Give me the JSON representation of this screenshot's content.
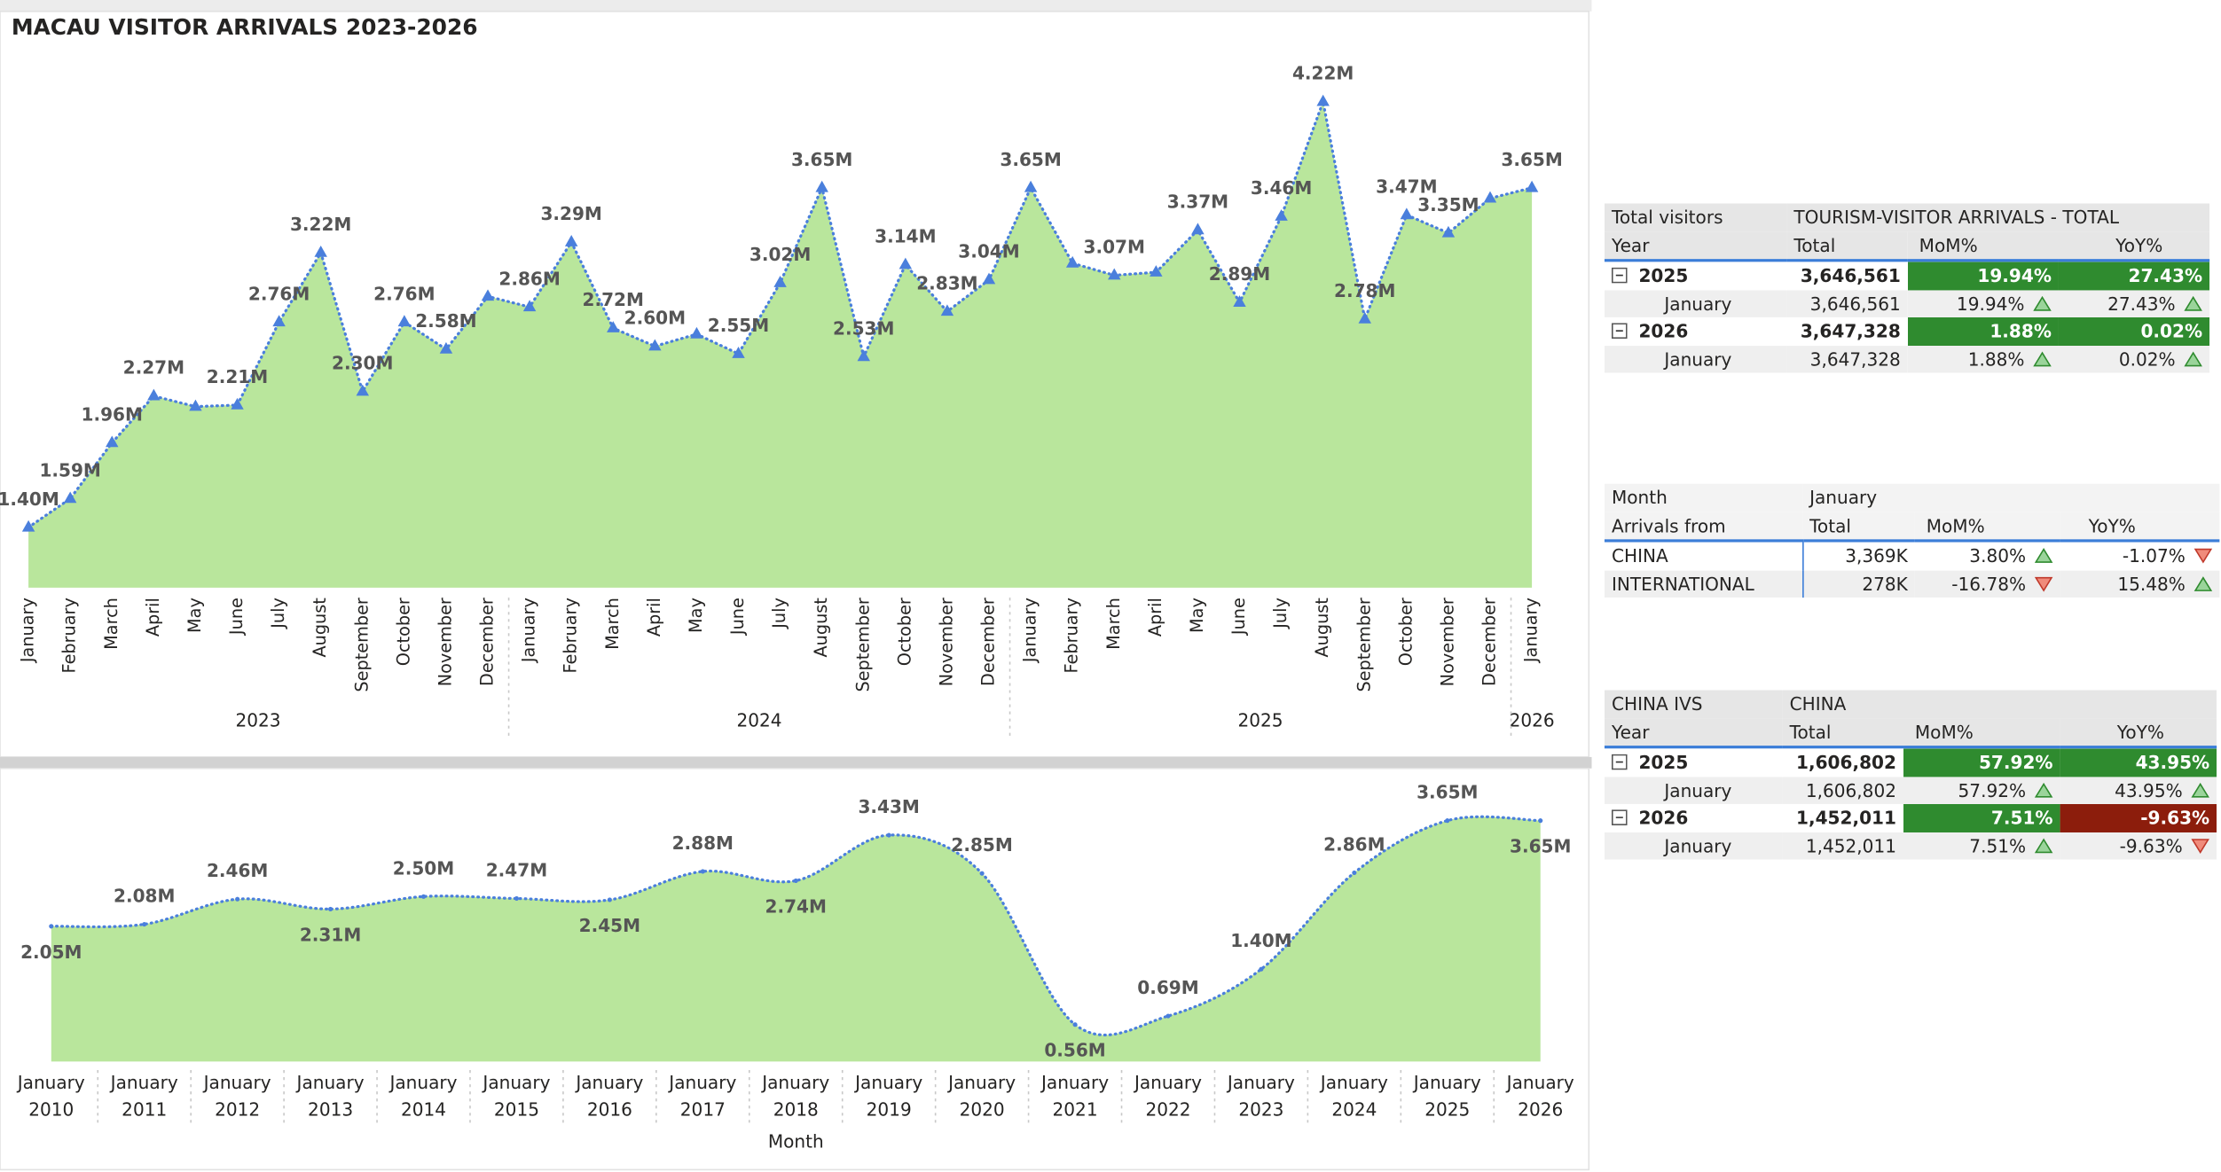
{
  "chart_data": [
    {
      "type": "area",
      "title": "MACAU VISITOR ARRIVALS 2023-2026",
      "categories": [
        "January",
        "February",
        "March",
        "April",
        "May",
        "June",
        "July",
        "August",
        "September",
        "October",
        "November",
        "December",
        "January",
        "February",
        "March",
        "April",
        "May",
        "June",
        "July",
        "August",
        "September",
        "October",
        "November",
        "December",
        "January",
        "February",
        "March",
        "April",
        "May",
        "June",
        "July",
        "August",
        "September",
        "October",
        "November",
        "December",
        "January"
      ],
      "x_groups": [
        "2023",
        "2024",
        "2025",
        "2026"
      ],
      "values": [
        1.4,
        1.59,
        1.96,
        2.27,
        2.2,
        2.21,
        2.76,
        3.22,
        2.3,
        2.76,
        2.58,
        2.93,
        2.86,
        3.29,
        2.72,
        2.6,
        2.68,
        2.55,
        3.02,
        3.65,
        2.53,
        3.14,
        2.83,
        3.04,
        3.65,
        3.15,
        3.07,
        3.09,
        3.37,
        2.89,
        3.46,
        4.22,
        2.78,
        3.47,
        3.35,
        3.58,
        3.65
      ],
      "value_labels": [
        "1.40M",
        "1.59M",
        "1.96M",
        "2.27M",
        null,
        "2.21M",
        "2.76M",
        "3.22M",
        "2.30M",
        "2.76M",
        "2.58M",
        null,
        "2.86M",
        "3.29M",
        "2.72M",
        "2.60M",
        null,
        "2.55M",
        "3.02M",
        "3.65M",
        "2.53M",
        "3.14M",
        "2.83M",
        "3.04M",
        "3.65M",
        null,
        "3.07M",
        null,
        "3.37M",
        "2.89M",
        "3.46M",
        "4.22M",
        "2.78M",
        "3.47M",
        "3.35M",
        null,
        "3.65M"
      ],
      "color": "#b9e69c",
      "line_color": "#4a7fdc",
      "marker": "triangle",
      "smooth": false,
      "ylim": [
        1,
        4.3
      ]
    },
    {
      "type": "area",
      "categories": [
        "January 2010",
        "January 2011",
        "January 2012",
        "January 2013",
        "January 2014",
        "January 2015",
        "January 2016",
        "January 2017",
        "January 2018",
        "January 2019",
        "January 2020",
        "January 2021",
        "January 2022",
        "January 2023",
        "January 2024",
        "January 2025",
        "January 2026"
      ],
      "xlabel": "Month",
      "values": [
        2.05,
        2.08,
        2.46,
        2.31,
        2.5,
        2.47,
        2.45,
        2.88,
        2.74,
        3.43,
        2.85,
        0.56,
        0.69,
        1.4,
        2.86,
        3.65,
        3.65
      ],
      "value_labels": [
        "2.05M",
        "2.08M",
        "2.46M",
        "2.31M",
        "2.50M",
        "2.47M",
        "2.45M",
        "2.88M",
        "2.74M",
        "3.43M",
        "2.85M",
        "0.56M",
        "0.69M",
        "1.40M",
        "2.86M",
        "3.65M",
        "3.65M"
      ],
      "color": "#b9e69c",
      "line_color": "#4a7fdc",
      "marker": "dot",
      "smooth": true,
      "ylim": [
        0,
        3.6
      ]
    }
  ],
  "tables": [
    {
      "header": [
        [
          "Total visitors",
          "TOURISM-VISITOR ARRIVALS - TOTAL"
        ],
        [
          "Year",
          "Total",
          "MoM%",
          "YoY%"
        ]
      ],
      "groups": [
        {
          "cells": [
            "2025",
            "3,646,561",
            "19.94%",
            "27.43%"
          ],
          "children": [
            [
              "January",
              "3,646,561",
              "19.94%",
              "27.43%"
            ]
          ]
        },
        {
          "cells": [
            "2026",
            "3,647,328",
            "1.88%",
            "0.02%"
          ],
          "children": [
            [
              "January",
              "3,647,328",
              "1.88%",
              "0.02%"
            ]
          ]
        }
      ]
    },
    {
      "header": [
        [
          "Month",
          "January"
        ],
        [
          "Arrivals from",
          "Total",
          "MoM%",
          "YoY%"
        ]
      ],
      "rows": [
        [
          "CHINA",
          "3,369K",
          "3.80%",
          "-1.07%"
        ],
        [
          "INTERNATIONAL",
          "278K",
          "-16.78%",
          "15.48%"
        ]
      ]
    },
    {
      "header": [
        [
          "CHINA IVS",
          "CHINA"
        ],
        [
          "Year",
          "Total",
          "MoM%",
          "YoY%"
        ]
      ],
      "groups": [
        {
          "cells": [
            "2025",
            "1,606,802",
            "57.92%",
            "43.95%"
          ],
          "children": [
            [
              "January",
              "1,606,802",
              "57.92%",
              "43.95%"
            ]
          ]
        },
        {
          "cells": [
            "2026",
            "1,452,011",
            "7.51%",
            "-9.63%"
          ],
          "children": [
            [
              "January",
              "1,452,011",
              "7.51%",
              "-9.63%"
            ]
          ]
        }
      ]
    }
  ]
}
